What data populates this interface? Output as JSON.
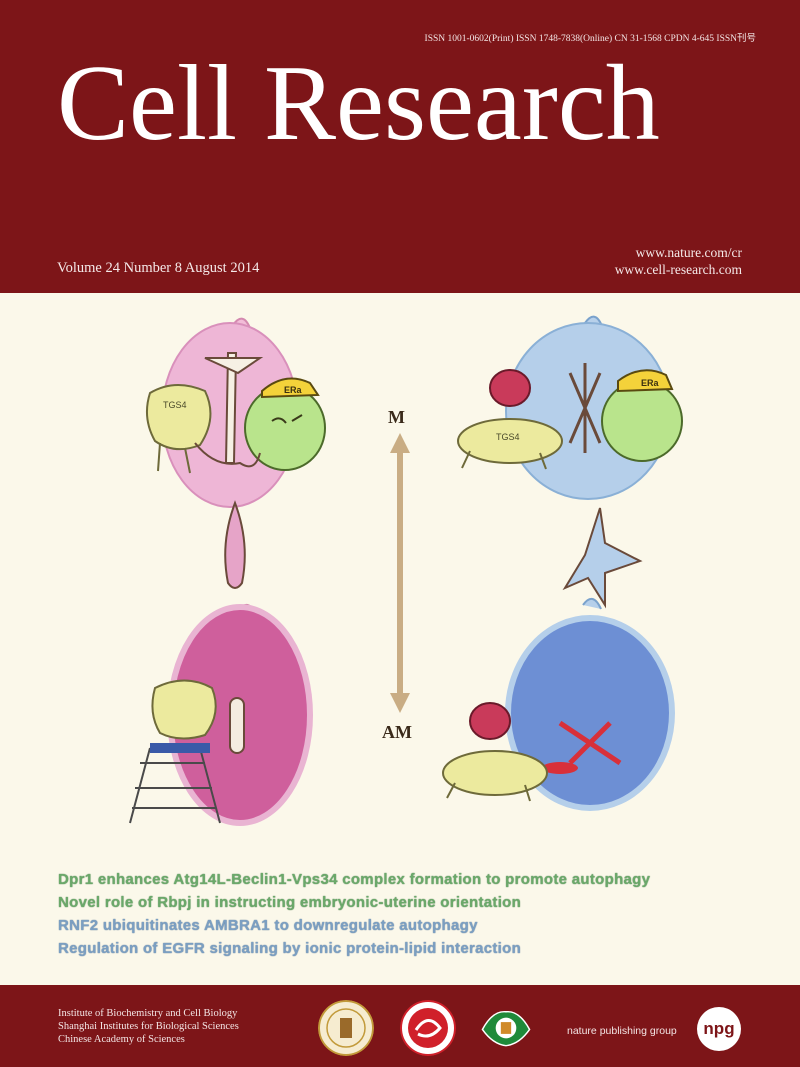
{
  "masthead": {
    "issn": "ISSN 1001-0602(Print)  ISSN 1748-7838(Online)  CN 31-1568  CPDN 4-645  ISSN刊号",
    "title": "Cell Research",
    "issue": "Volume 24   Number 8   August 2014",
    "url1": "www.nature.com/cr",
    "url2": "www.cell-research.com"
  },
  "illustration": {
    "label_top": "M",
    "label_bottom": "AM",
    "badges": [
      "ERa",
      "ERa",
      "TGS4",
      "TGS4"
    ]
  },
  "headlines": [
    "Dpr1 enhances Atg14L-Beclin1-Vps34 complex formation to promote autophagy",
    "Novel role of Rbpj in instructing embryonic-uterine orientation",
    "RNF2 ubiquitinates AMBRA1 to downregulate autophagy",
    "Regulation of EGFR signaling by ionic protein-lipid interaction"
  ],
  "footer": {
    "institution": [
      "Institute of Biochemistry and Cell Biology",
      "Shanghai Institutes for Biological Sciences",
      "Chinese Academy of Sciences"
    ],
    "publisher": "nature publishing group",
    "npg_logo": "npg"
  },
  "colors": {
    "masthead": "#7d1518",
    "background": "#fbf8ea",
    "headline_green": "#6ba96a",
    "headline_blue": "#7b9fc2"
  }
}
